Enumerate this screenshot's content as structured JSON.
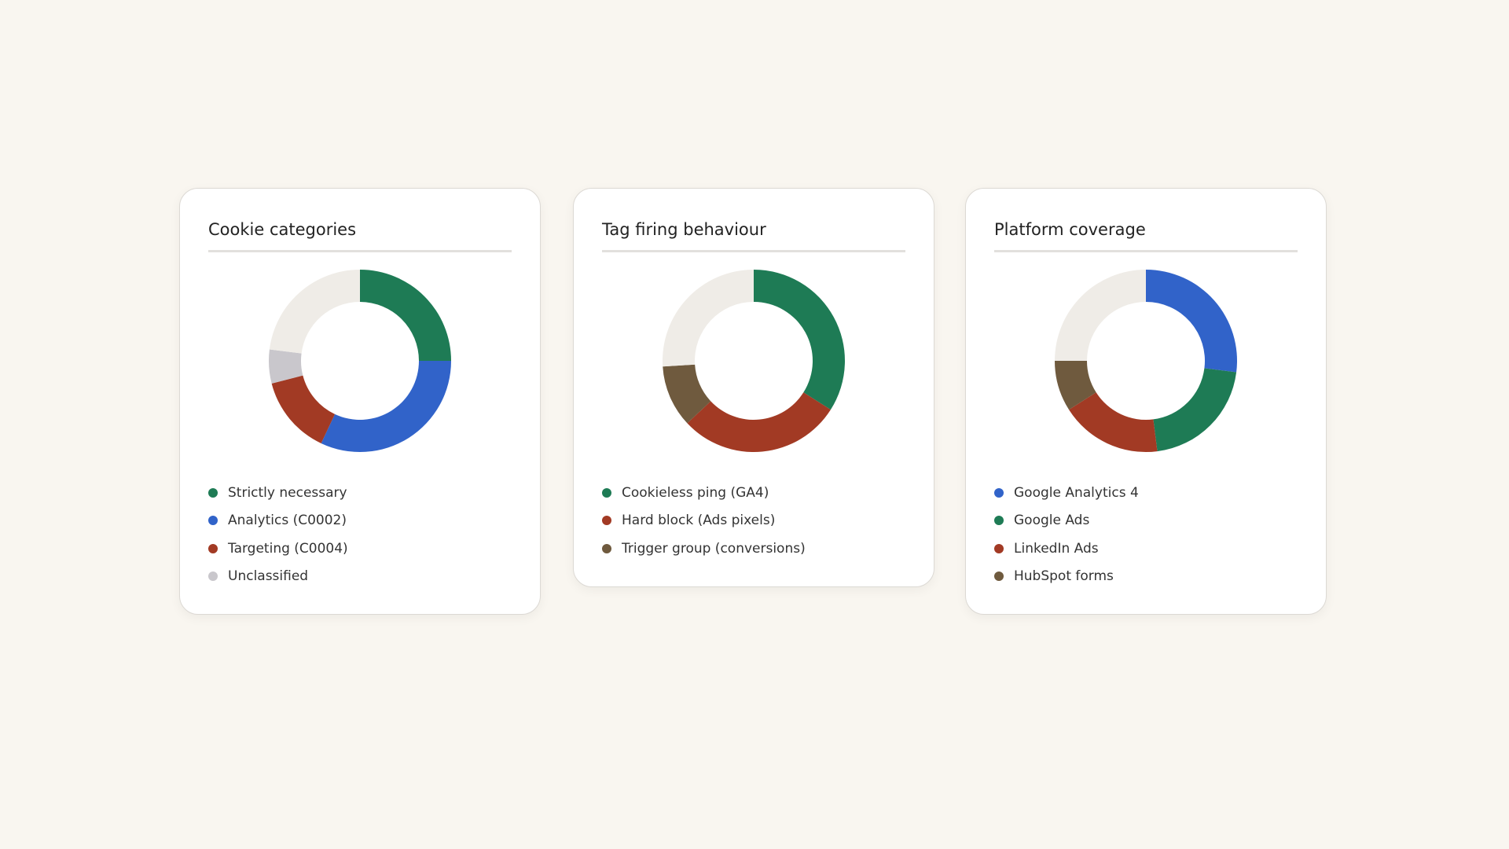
{
  "chart_data": [
    {
      "type": "donut",
      "title": "Cookie categories",
      "categories": [
        "Strictly necessary",
        "Analytics (C0002)",
        "Targeting (C0004)",
        "Unclassified",
        null
      ],
      "values": [
        25,
        32,
        14,
        6,
        23
      ],
      "colors": [
        "#1e7b55",
        "#3163c9",
        "#a23a24",
        "#c9c7cc",
        "#efece7"
      ]
    },
    {
      "type": "donut",
      "title": "Tag firing behaviour",
      "categories": [
        "Cookieless ping (GA4)",
        "Hard block (Ads pixels)",
        "Trigger group (conversions)",
        null
      ],
      "values": [
        34,
        29,
        11,
        26
      ],
      "colors": [
        "#1e7b55",
        "#a23a24",
        "#6f5a3e",
        "#efece7"
      ]
    },
    {
      "type": "donut",
      "title": "Platform coverage",
      "categories": [
        "Google Analytics 4",
        "Google Ads",
        "LinkedIn Ads",
        "HubSpot forms",
        null
      ],
      "values": [
        27,
        21,
        18,
        9,
        25
      ],
      "colors": [
        "#3163c9",
        "#1e7b55",
        "#a23a24",
        "#6f5a3e",
        "#efece7"
      ]
    }
  ]
}
